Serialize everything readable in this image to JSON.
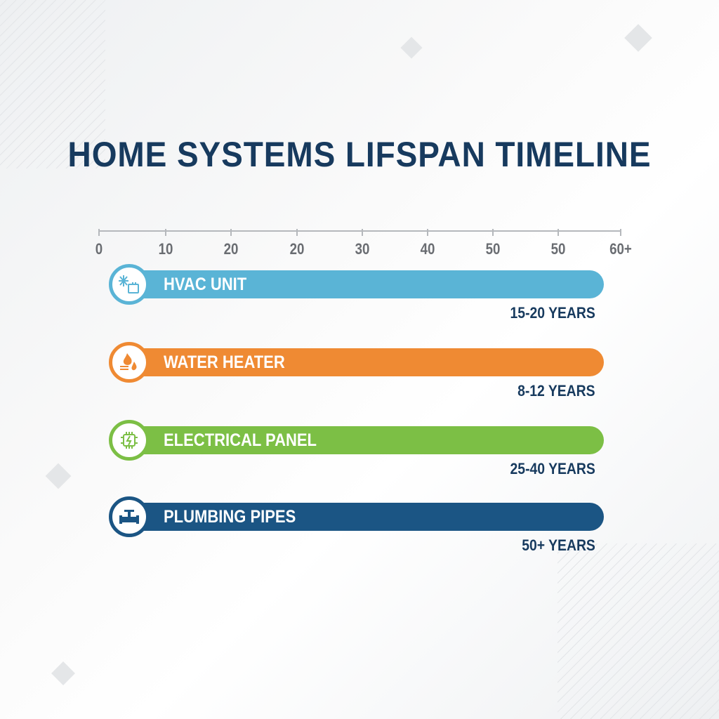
{
  "chart_data": {
    "type": "bar",
    "title": "HOME SYSTEMS LIFSPAN TIMELINE",
    "x_tick_labels": [
      "0",
      "10",
      "20",
      "20",
      "30",
      "40",
      "50",
      "50",
      "60+"
    ],
    "grid": false,
    "series": [
      {
        "name": "HVAC UNIT",
        "range_label": "15-20 YEARS",
        "min": 15,
        "max": 20,
        "color": "#5ab4d6",
        "icon": "snowflake-ac-icon"
      },
      {
        "name": "WATER HEATER",
        "range_label": "8-12 YEARS",
        "min": 8,
        "max": 12,
        "color": "#ef8a33",
        "icon": "flame-water-drop-icon"
      },
      {
        "name": "ELECTRICAL PANEL",
        "range_label": "25-40 YEARS",
        "min": 25,
        "max": 40,
        "color": "#7cbf45",
        "icon": "circuit-lightning-icon"
      },
      {
        "name": "PLUMBING PIPES",
        "range_label": "50+ YEARS",
        "min": 50,
        "max": null,
        "color": "#1b5584",
        "icon": "pipe-valve-icon"
      }
    ]
  }
}
